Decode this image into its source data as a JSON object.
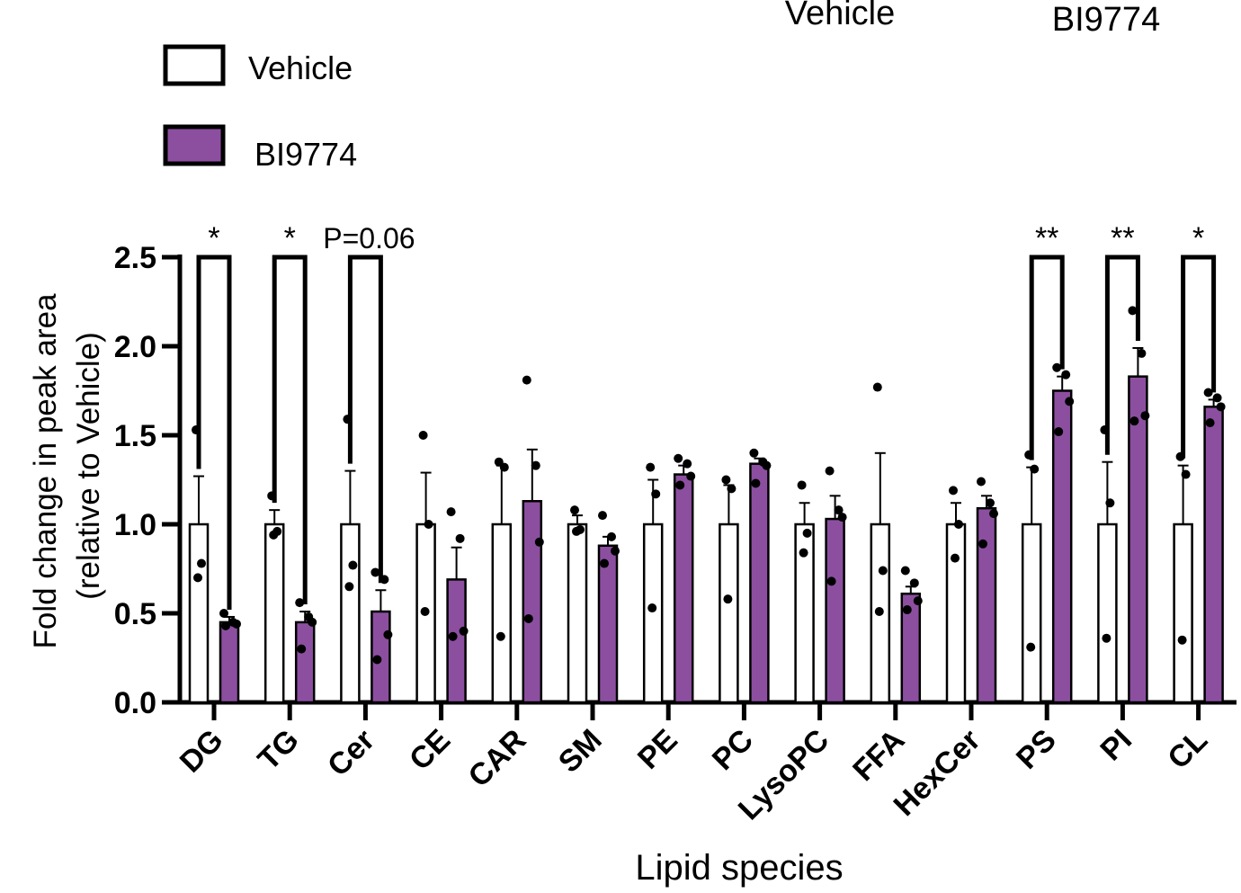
{
  "header": {
    "group1": "Vehicle",
    "group2": "BI9774"
  },
  "legend": {
    "items": [
      {
        "label": "Vehicle",
        "color": "#ffffff"
      },
      {
        "label": "BI9774",
        "color": "#8c4fa0"
      }
    ]
  },
  "chart_data": {
    "type": "bar",
    "title": "",
    "xlabel": "Lipid species",
    "ylabel": "Fold change  in peak area",
    "ylabel2": "(relative to Vehicle)",
    "ylim": [
      0,
      2.5
    ],
    "yticks": [
      "0.0",
      "0.5",
      "1.0",
      "1.5",
      "2.0",
      "2.5"
    ],
    "categories": [
      "DG",
      "TG",
      "Cer",
      "CE",
      "CAR",
      "SM",
      "PE",
      "PC",
      "LysoPC",
      "FFA",
      "HexCer",
      "PS",
      "PI",
      "CL"
    ],
    "series": [
      {
        "name": "Vehicle",
        "color": "#ffffff",
        "values": [
          1.0,
          1.0,
          1.0,
          1.0,
          1.0,
          1.0,
          1.0,
          1.0,
          1.0,
          1.0,
          1.0,
          1.0,
          1.0,
          1.0
        ],
        "sem": [
          0.27,
          0.08,
          0.3,
          0.29,
          0.33,
          0.05,
          0.25,
          0.22,
          0.12,
          0.4,
          0.12,
          0.32,
          0.35,
          0.33
        ],
        "points": [
          [
            1.53,
            0.78,
            0.7
          ],
          [
            1.16,
            0.96,
            0.94
          ],
          [
            1.59,
            0.77,
            0.65
          ],
          [
            1.5,
            1.0,
            0.51
          ],
          [
            1.35,
            1.32,
            0.37
          ],
          [
            1.08,
            0.97,
            0.96
          ],
          [
            1.32,
            1.17,
            0.53
          ],
          [
            1.25,
            1.2,
            0.58
          ],
          [
            1.22,
            0.95,
            0.84
          ],
          [
            1.77,
            0.74,
            0.51
          ],
          [
            1.19,
            1.0,
            0.81
          ],
          [
            1.39,
            1.31,
            0.31
          ],
          [
            1.53,
            1.12,
            0.36
          ],
          [
            1.38,
            1.28,
            0.35
          ]
        ]
      },
      {
        "name": "BI9774",
        "color": "#8c4fa0",
        "values": [
          0.45,
          0.45,
          0.51,
          0.69,
          1.13,
          0.88,
          1.28,
          1.34,
          1.03,
          0.61,
          1.09,
          1.75,
          1.83,
          1.66
        ],
        "sem": [
          0.03,
          0.06,
          0.12,
          0.18,
          0.29,
          0.05,
          0.05,
          0.03,
          0.13,
          0.04,
          0.07,
          0.08,
          0.16,
          0.04
        ],
        "points": [
          [
            0.5,
            0.45,
            0.44,
            0.43
          ],
          [
            0.56,
            0.48,
            0.45,
            0.3
          ],
          [
            0.73,
            0.69,
            0.38,
            0.24
          ],
          [
            1.07,
            0.92,
            0.4,
            0.37
          ],
          [
            1.81,
            1.33,
            0.9,
            0.47
          ],
          [
            1.05,
            0.93,
            0.85,
            0.78
          ],
          [
            1.37,
            1.34,
            1.27,
            1.22
          ],
          [
            1.4,
            1.35,
            1.33,
            1.23
          ],
          [
            1.3,
            1.08,
            1.04,
            0.68
          ],
          [
            0.74,
            0.67,
            0.57,
            0.52
          ],
          [
            1.24,
            1.12,
            1.06,
            0.89
          ],
          [
            1.88,
            1.84,
            1.69,
            1.52
          ],
          [
            2.2,
            1.96,
            1.61,
            1.58
          ],
          [
            1.74,
            1.71,
            1.66,
            1.57
          ]
        ]
      }
    ],
    "significance": [
      {
        "category": "DG",
        "label": "*"
      },
      {
        "category": "TG",
        "label": "*"
      },
      {
        "category": "Cer",
        "label": "P=0.06"
      },
      {
        "category": "PS",
        "label": "**"
      },
      {
        "category": "PI",
        "label": "**"
      },
      {
        "category": "CL",
        "label": "*"
      }
    ],
    "grid": false,
    "legend_position": "top-left"
  }
}
